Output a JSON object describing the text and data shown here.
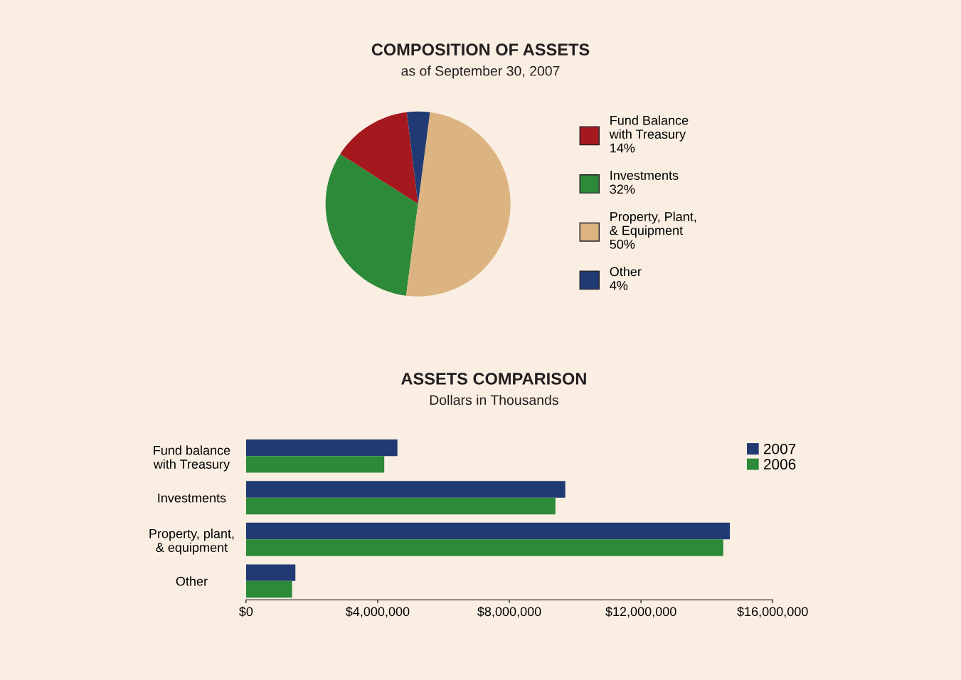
{
  "chart_data": [
    {
      "type": "pie",
      "title": "COMPOSITION OF ASSETS",
      "subtitle": "as of September 30, 2007",
      "categories": [
        "Fund Balance\nwith Treasury",
        "Investments",
        "Property, Plant,\n& Equipment",
        "Other"
      ],
      "values": [
        14,
        32,
        50,
        4
      ],
      "value_labels": [
        "14%",
        "32%",
        "50%",
        "4%"
      ],
      "colors": [
        "#a5191e",
        "#2c8a39",
        "#dcb482",
        "#213a73"
      ],
      "legend": "right"
    },
    {
      "type": "bar",
      "orientation": "horizontal",
      "title": "ASSETS COMPARISON",
      "subtitle": "Dollars in Thousands",
      "categories": [
        "Fund balance\nwith Treasury",
        "Investments",
        "Property, plant,\n& equipment",
        "Other"
      ],
      "series": [
        {
          "name": "2007",
          "color": "#213a73",
          "values": [
            4600000,
            9700000,
            14700000,
            1500000
          ]
        },
        {
          "name": "2006",
          "color": "#2c8a39",
          "values": [
            4200000,
            9400000,
            14500000,
            1400000
          ]
        }
      ],
      "xlim": [
        0,
        16000000
      ],
      "xticks": [
        {
          "value": 0,
          "label": "$0"
        },
        {
          "value": 4000000,
          "label": "$4,000,000"
        },
        {
          "value": 8000000,
          "label": "$8,000,000"
        },
        {
          "value": 12000000,
          "label": "$12,000,000"
        },
        {
          "value": 16000000,
          "label": "$16,000,000"
        }
      ],
      "legend": "top right",
      "grid": false
    }
  ]
}
